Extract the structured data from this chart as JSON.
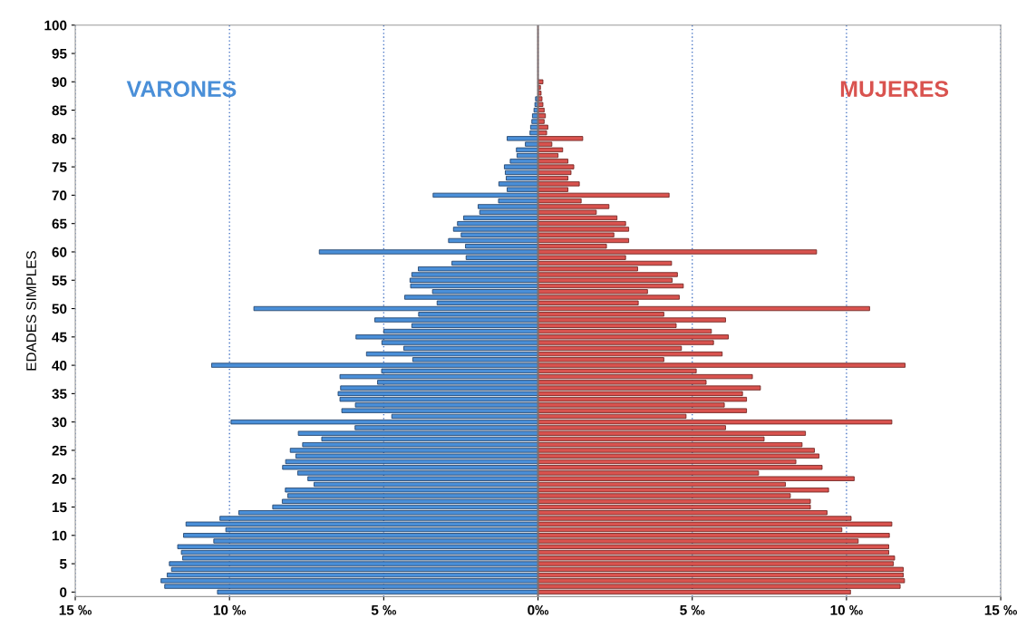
{
  "chart_data": {
    "type": "bar",
    "orientation": "horizontal",
    "ylabel": "EDADES SIMPLES",
    "x": [
      0,
      1,
      2,
      3,
      4,
      5,
      6,
      7,
      8,
      9,
      10,
      11,
      12,
      13,
      14,
      15,
      16,
      17,
      18,
      19,
      20,
      21,
      22,
      23,
      24,
      25,
      26,
      27,
      28,
      29,
      30,
      31,
      32,
      33,
      34,
      35,
      36,
      37,
      38,
      39,
      40,
      41,
      42,
      43,
      44,
      45,
      46,
      47,
      48,
      49,
      50,
      51,
      52,
      53,
      54,
      55,
      56,
      57,
      58,
      59,
      60,
      61,
      62,
      63,
      64,
      65,
      66,
      67,
      68,
      69,
      70,
      71,
      72,
      73,
      74,
      75,
      76,
      77,
      78,
      79,
      80,
      81,
      82,
      83,
      84,
      85,
      86,
      87,
      88,
      89,
      90
    ],
    "series": [
      {
        "name": "VARONES",
        "color": "#4a8fd8",
        "values": [
          -10.39,
          -12.1,
          -12.22,
          -12.02,
          -11.88,
          -11.95,
          -11.52,
          -11.56,
          -11.68,
          -10.51,
          -11.49,
          -10.12,
          -11.41,
          -10.31,
          -9.7,
          -8.6,
          -8.29,
          -8.11,
          -8.19,
          -7.26,
          -7.46,
          -7.79,
          -8.28,
          -8.18,
          -7.85,
          -8.03,
          -7.63,
          -7.01,
          -7.77,
          -5.93,
          -9.95,
          -4.74,
          -6.36,
          -5.92,
          -6.42,
          -6.48,
          -6.4,
          -5.2,
          -6.42,
          -5.07,
          -10.58,
          -4.06,
          -5.56,
          -4.35,
          -5.06,
          -5.9,
          -5.0,
          -4.09,
          -5.29,
          -3.87,
          -9.21,
          -3.27,
          -4.32,
          -3.42,
          -4.13,
          -4.15,
          -4.09,
          -3.88,
          -2.79,
          -2.33,
          -7.09,
          -2.35,
          -2.9,
          -2.49,
          -2.74,
          -2.61,
          -2.41,
          -1.89,
          -1.94,
          -1.28,
          -3.4,
          -1.0,
          -1.27,
          -1.03,
          -1.06,
          -1.09,
          -0.9,
          -0.68,
          -0.7,
          -0.41,
          -1.0,
          -0.26,
          -0.24,
          -0.2,
          -0.18,
          -0.13,
          -0.1,
          -0.08,
          null,
          null,
          null
        ]
      },
      {
        "name": "MUJERES",
        "color": "#d9534f",
        "values": [
          10.13,
          11.74,
          11.88,
          11.84,
          11.84,
          11.52,
          11.56,
          11.37,
          11.37,
          10.38,
          11.39,
          9.85,
          11.47,
          10.15,
          9.37,
          8.83,
          8.83,
          8.18,
          9.42,
          8.02,
          10.25,
          7.15,
          9.21,
          8.36,
          9.11,
          8.96,
          8.56,
          7.33,
          8.67,
          6.08,
          11.47,
          4.8,
          6.76,
          6.04,
          6.76,
          6.63,
          7.21,
          5.45,
          6.95,
          5.13,
          11.9,
          4.08,
          5.97,
          4.65,
          5.69,
          6.17,
          5.62,
          4.48,
          6.08,
          4.08,
          10.75,
          3.25,
          4.58,
          3.55,
          4.71,
          4.35,
          4.52,
          3.23,
          4.33,
          2.84,
          9.03,
          2.22,
          2.94,
          2.46,
          2.94,
          2.84,
          2.56,
          1.89,
          2.3,
          1.4,
          4.25,
          0.97,
          1.34,
          0.97,
          1.07,
          1.16,
          0.97,
          0.65,
          0.8,
          0.45,
          1.45,
          0.28,
          0.32,
          0.2,
          0.24,
          0.2,
          0.16,
          0.13,
          0.1,
          0.08,
          0.16
        ]
      }
    ],
    "xlim": [
      -15,
      15
    ],
    "xticks": [
      {
        "value": -15,
        "label": "15 ‰"
      },
      {
        "value": -10,
        "label": "10 ‰"
      },
      {
        "value": -5,
        "label": "5 ‰"
      },
      {
        "value": 0,
        "label": "0‰"
      },
      {
        "value": 5,
        "label": "5 ‰"
      },
      {
        "value": 10,
        "label": "10 ‰"
      },
      {
        "value": 15,
        "label": "15 ‰"
      }
    ],
    "ylim": [
      -0.8,
      100
    ],
    "yticks": [
      0,
      5,
      10,
      15,
      20,
      25,
      30,
      35,
      40,
      45,
      50,
      55,
      60,
      65,
      70,
      75,
      80,
      85,
      90,
      95,
      100
    ],
    "ref_lines": [
      {
        "axis": "x",
        "value": 0,
        "color": "#7f6f6f"
      }
    ],
    "grid": "x",
    "legend": false,
    "stacked": true
  }
}
